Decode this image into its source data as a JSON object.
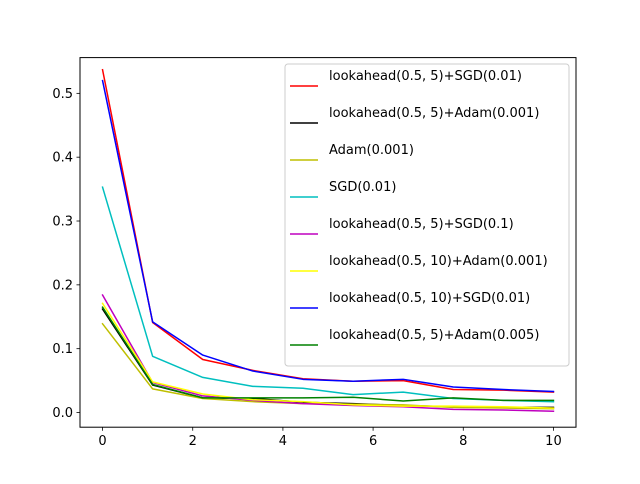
{
  "chart_data": {
    "type": "line",
    "title": "",
    "xlabel": "",
    "ylabel": "",
    "xlim": [
      -0.5,
      10.5
    ],
    "ylim": [
      -0.023,
      0.556
    ],
    "xticks": [
      0,
      2,
      4,
      6,
      8,
      10
    ],
    "yticks": [
      0.0,
      0.1,
      0.2,
      0.3,
      0.4,
      0.5
    ],
    "xtick_labels": [
      "0",
      "2",
      "4",
      "6",
      "8",
      "10"
    ],
    "ytick_labels": [
      "0.0",
      "0.1",
      "0.2",
      "0.3",
      "0.4",
      "0.5"
    ],
    "grid": false,
    "legend_position": "top-right",
    "x": [
      0,
      1.111,
      2.222,
      3.333,
      4.444,
      5.556,
      6.667,
      7.778,
      8.889,
      10
    ],
    "series": [
      {
        "name": "lookahead(0.5, 5)+SGD(0.01)",
        "color": "#ff0000",
        "values": [
          0.537,
          0.141,
          0.083,
          0.066,
          0.053,
          0.049,
          0.05,
          0.036,
          0.035,
          0.032
        ]
      },
      {
        "name": "lookahead(0.5, 5)+Adam(0.001)",
        "color": "#000000",
        "values": [
          0.162,
          0.043,
          0.023,
          0.022,
          0.016,
          0.014,
          0.011,
          0.009,
          0.008,
          0.008
        ]
      },
      {
        "name": "Adam(0.001)",
        "color": "#bfbf00",
        "values": [
          0.139,
          0.037,
          0.022,
          0.017,
          0.014,
          0.013,
          0.012,
          0.008,
          0.007,
          0.006
        ]
      },
      {
        "name": "SGD(0.01)",
        "color": "#00bfbf",
        "values": [
          0.353,
          0.088,
          0.055,
          0.041,
          0.038,
          0.028,
          0.032,
          0.022,
          0.019,
          0.017
        ]
      },
      {
        "name": "lookahead(0.5, 5)+SGD(0.1)",
        "color": "#bf00bf",
        "values": [
          0.184,
          0.047,
          0.026,
          0.019,
          0.014,
          0.011,
          0.009,
          0.005,
          0.004,
          0.002
        ]
      },
      {
        "name": "lookahead(0.5, 10)+Adam(0.001)",
        "color": "#ffff00",
        "values": [
          0.171,
          0.048,
          0.029,
          0.02,
          0.017,
          0.012,
          0.01,
          0.01,
          0.009,
          0.007
        ]
      },
      {
        "name": "lookahead(0.5, 10)+SGD(0.01)",
        "color": "#0000ff",
        "values": [
          0.52,
          0.142,
          0.09,
          0.065,
          0.052,
          0.049,
          0.052,
          0.04,
          0.036,
          0.033
        ]
      },
      {
        "name": "lookahead(0.5, 5)+Adam(0.005)",
        "color": "#008000",
        "values": [
          0.165,
          0.044,
          0.023,
          0.023,
          0.023,
          0.024,
          0.018,
          0.023,
          0.019,
          0.019
        ]
      }
    ]
  }
}
